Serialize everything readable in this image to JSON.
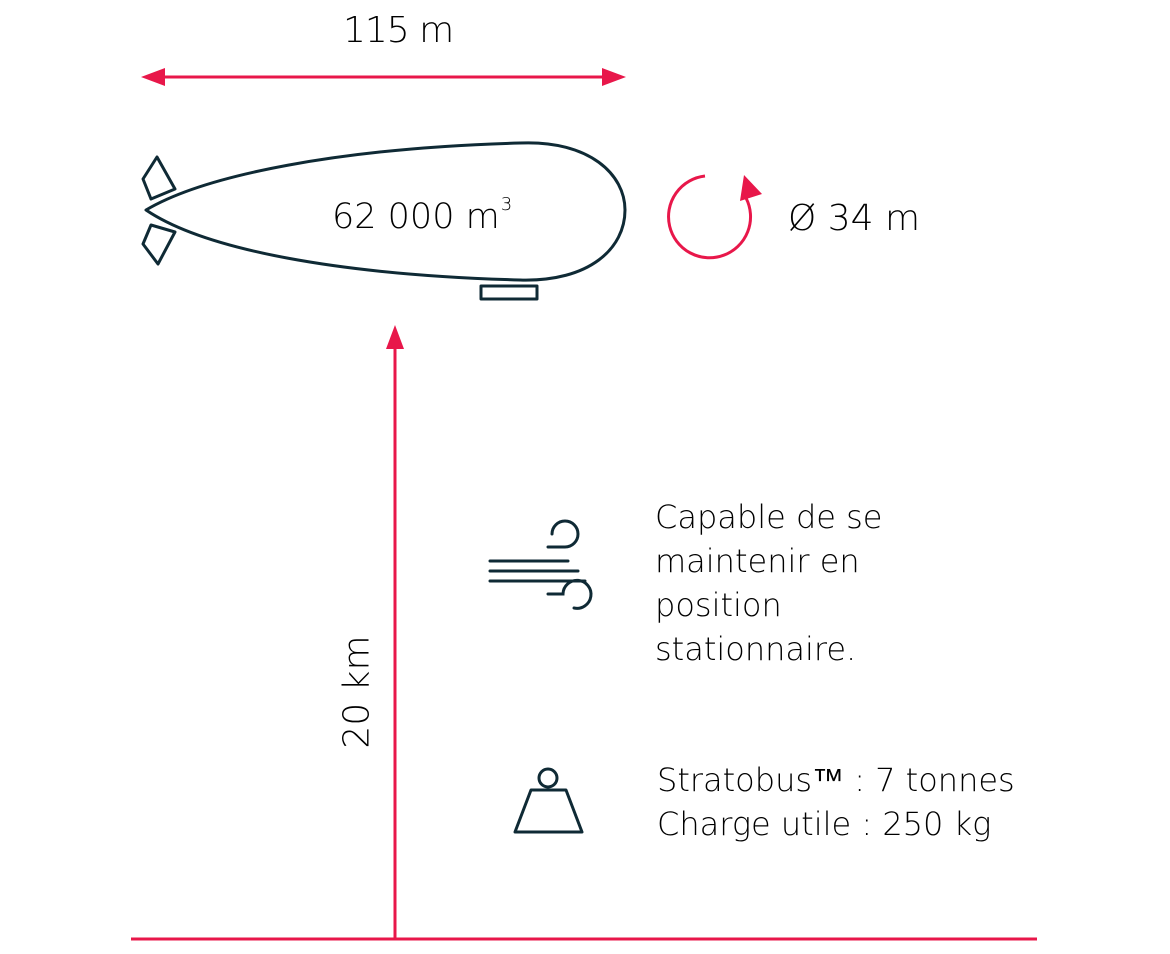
{
  "colors": {
    "accent": "#e8174a",
    "ink": "#0f2a35",
    "text": "#1a1a1a"
  },
  "dimensions": {
    "length_label": "115 m",
    "volume_value": "62 000 m",
    "volume_exponent": "3",
    "diameter_label": "Ø 34 m",
    "altitude_label": "20 km"
  },
  "features": {
    "wind": {
      "icon": "wind-icon",
      "lines": [
        "Capable de se",
        "maintenir en",
        "position",
        "stationnaire."
      ]
    },
    "weight": {
      "icon": "weight-icon",
      "lines": [
        "Stratobus™ : 7 tonnes",
        "Charge utile : 250 kg"
      ]
    }
  },
  "icons": {
    "airship": "airship-icon",
    "rotation": "rotation-arrow-icon"
  }
}
